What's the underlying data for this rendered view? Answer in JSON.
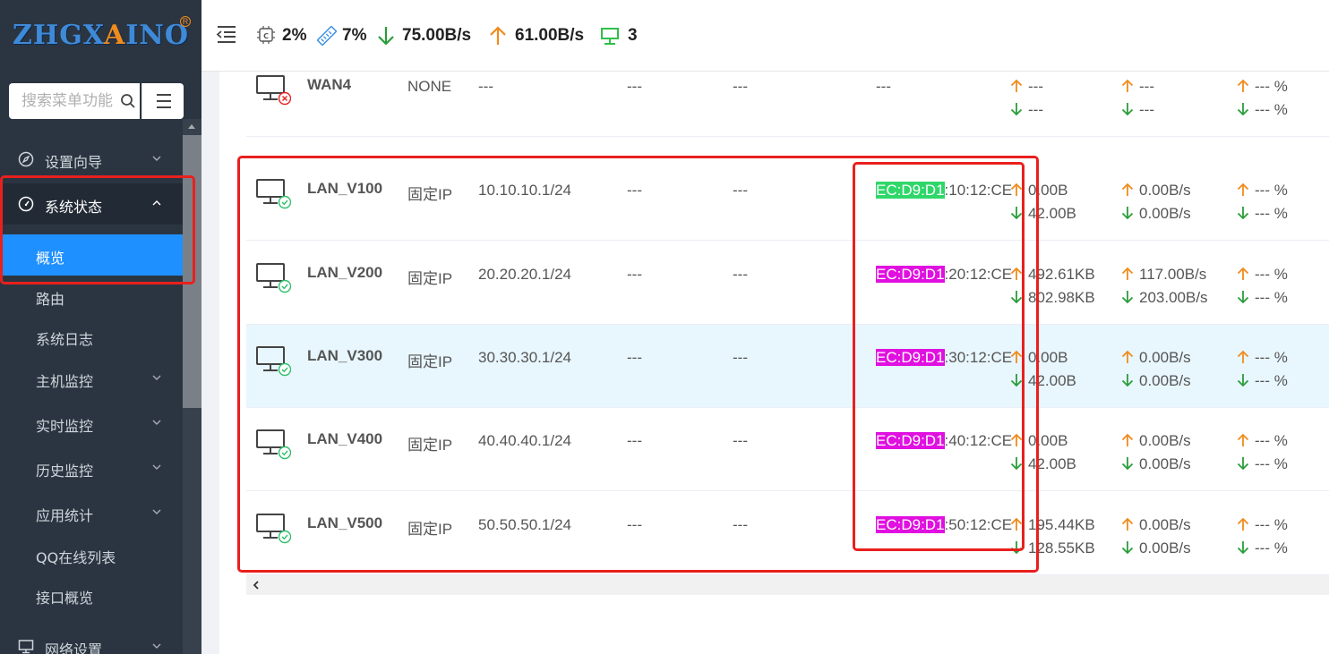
{
  "logo": {
    "text_blue": "ZHGX",
    "text_orange": "A",
    "text_blue2": "INO",
    "reg": "R"
  },
  "search": {
    "placeholder": "搜索菜单功能"
  },
  "nav": {
    "setup_wizard": "设置向导",
    "system_status": "系统状态",
    "overview": "概览",
    "routing": "路由",
    "system_log": "系统日志",
    "host_monitor": "主机监控",
    "realtime_monitor": "实时监控",
    "history_monitor": "历史监控",
    "app_stats": "应用统计",
    "qq_online": "QQ在线列表",
    "iface_overview": "接口概览",
    "network_settings": "网络设置"
  },
  "header": {
    "cpu": "2%",
    "mem": "7%",
    "download": "75.00B/s",
    "upload": "61.00B/s",
    "online": "3"
  },
  "colors": {
    "up_arrow": "#f08b1c",
    "down_arrow": "#2a9d3a",
    "active_nav": "#1e90ff",
    "highlight_box": "#e8201e"
  },
  "rows": [
    {
      "name": "WAN4",
      "mode": "NONE",
      "ip": "---",
      "d1": "---",
      "d2": "---",
      "mac_hl": "",
      "mac_rest": "---",
      "mac_color": "",
      "status": "error",
      "up_total": "---",
      "down_total": "---",
      "up_rate": "---",
      "down_rate": "---",
      "up_pct": "--- %",
      "down_pct": "--- %"
    },
    {
      "name": "LAN_V100",
      "mode": "固定IP",
      "ip": "10.10.10.1/24",
      "d1": "---",
      "d2": "---",
      "mac_hl": "EC:D9:D1",
      "mac_rest": ":10:12:CE",
      "mac_color": "green",
      "status": "ok",
      "up_total": "0.00B",
      "down_total": "42.00B",
      "up_rate": "0.00B/s",
      "down_rate": "0.00B/s",
      "up_pct": "--- %",
      "down_pct": "--- %"
    },
    {
      "name": "LAN_V200",
      "mode": "固定IP",
      "ip": "20.20.20.1/24",
      "d1": "---",
      "d2": "---",
      "mac_hl": "EC:D9:D1",
      "mac_rest": ":20:12:CE",
      "mac_color": "magenta",
      "status": "ok",
      "up_total": "492.61KB",
      "down_total": "802.98KB",
      "up_rate": "117.00B/s",
      "down_rate": "203.00B/s",
      "up_pct": "--- %",
      "down_pct": "--- %"
    },
    {
      "name": "LAN_V300",
      "mode": "固定IP",
      "ip": "30.30.30.1/24",
      "d1": "---",
      "d2": "---",
      "mac_hl": "EC:D9:D1",
      "mac_rest": ":30:12:CE",
      "mac_color": "magenta",
      "status": "ok",
      "up_total": "0.00B",
      "down_total": "42.00B",
      "up_rate": "0.00B/s",
      "down_rate": "0.00B/s",
      "up_pct": "--- %",
      "down_pct": "--- %"
    },
    {
      "name": "LAN_V400",
      "mode": "固定IP",
      "ip": "40.40.40.1/24",
      "d1": "---",
      "d2": "---",
      "mac_hl": "EC:D9:D1",
      "mac_rest": ":40:12:CE",
      "mac_color": "magenta",
      "status": "ok",
      "up_total": "0.00B",
      "down_total": "42.00B",
      "up_rate": "0.00B/s",
      "down_rate": "0.00B/s",
      "up_pct": "--- %",
      "down_pct": "--- %"
    },
    {
      "name": "LAN_V500",
      "mode": "固定IP",
      "ip": "50.50.50.1/24",
      "d1": "---",
      "d2": "---",
      "mac_hl": "EC:D9:D1",
      "mac_rest": ":50:12:CE",
      "mac_color": "magenta",
      "status": "ok",
      "up_total": "195.44KB",
      "down_total": "128.55KB",
      "up_rate": "0.00B/s",
      "down_rate": "0.00B/s",
      "up_pct": "--- %",
      "down_pct": "--- %"
    }
  ]
}
